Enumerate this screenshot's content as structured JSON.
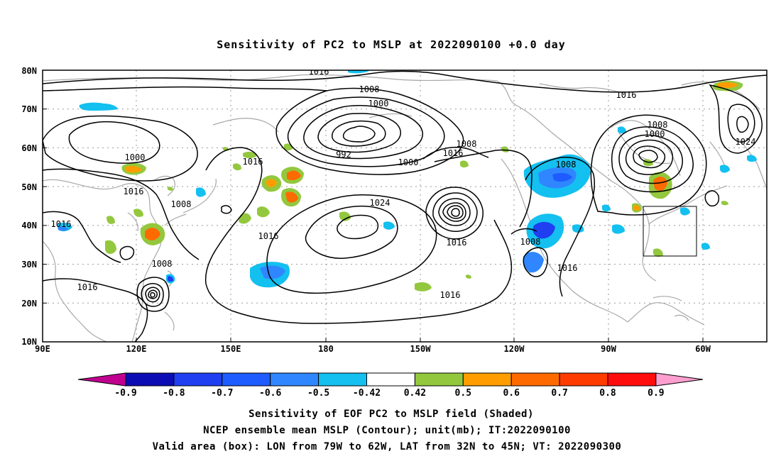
{
  "title": "Sensitivity of PC2 to MSLP at 2022090100 +0.0 day",
  "lat_labels": [
    "80N",
    "70N",
    "60N",
    "50N",
    "40N",
    "30N",
    "20N",
    "10N"
  ],
  "lon_labels": [
    "90E",
    "120E",
    "150E",
    "180",
    "150W",
    "120W",
    "90W",
    "60W"
  ],
  "contour_labels": [
    "1016",
    "1008",
    "1000",
    "992",
    "1000",
    "1016",
    "1008",
    "1016",
    "1016",
    "1000",
    "1016",
    "1008",
    "1016",
    "1024",
    "1016",
    "1008",
    "1016",
    "1016",
    "1008",
    "1016",
    "1016",
    "1008",
    "1000",
    "1024",
    "1008",
    "1016"
  ],
  "colorbar": {
    "labels": [
      "-0.9",
      "-0.8",
      "-0.7",
      "-0.6",
      "-0.5",
      "-0.42",
      "0.42",
      "0.5",
      "0.6",
      "0.7",
      "0.8",
      "0.9"
    ],
    "colors": [
      "#c0008f",
      "#0c0cb4",
      "#1f3ff0",
      "#1e5cff",
      "#2f86ff",
      "#13c0f0",
      "#ffffff",
      "#93c83e",
      "#ff9d00",
      "#ff6a00",
      "#ff3c00",
      "#ff0c0c",
      "#ff9fd0"
    ]
  },
  "caption": [
    "Sensitivity of EOF PC2 to MSLP field (Shaded)",
    "NCEP ensemble mean MSLP (Contour); unit(mb); IT:2022090100",
    "Valid area (box): LON from 79W to 62W, LAT from 32N to 45N; VT: 2022090300"
  ]
}
